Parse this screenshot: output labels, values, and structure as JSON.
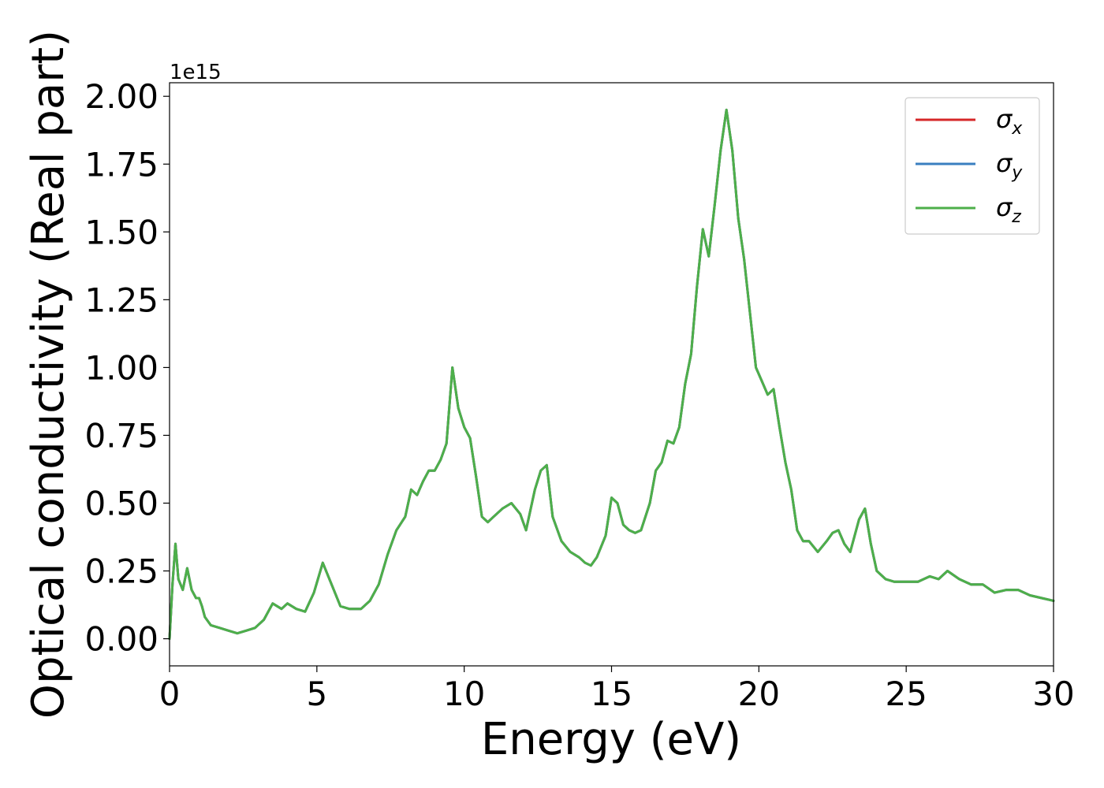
{
  "chart_data": {
    "type": "line",
    "title": "",
    "xlabel": "Energy (eV)",
    "ylabel": "Optical conductivity (Real part)",
    "y_offset_text": "1e15",
    "y_scale": 1000000000000000.0,
    "xlim": [
      0,
      30
    ],
    "ylim": [
      -0.1,
      2.05
    ],
    "xticks": [
      0,
      5,
      10,
      15,
      20,
      25,
      30
    ],
    "xtick_labels": [
      "0",
      "5",
      "10",
      "15",
      "20",
      "25",
      "30"
    ],
    "yticks": [
      0.0,
      0.25,
      0.5,
      0.75,
      1.0,
      1.25,
      1.5,
      1.75,
      2.0
    ],
    "ytick_labels": [
      "0.00",
      "0.25",
      "0.50",
      "0.75",
      "1.00",
      "1.25",
      "1.50",
      "1.75",
      "2.00"
    ],
    "grid": false,
    "legend_position": "top-right",
    "x": [
      0.0,
      0.1,
      0.2,
      0.3,
      0.45,
      0.6,
      0.75,
      0.9,
      1.0,
      1.1,
      1.2,
      1.4,
      1.7,
      2.0,
      2.3,
      2.6,
      2.9,
      3.2,
      3.5,
      3.8,
      4.0,
      4.3,
      4.6,
      4.9,
      5.2,
      5.5,
      5.8,
      6.1,
      6.5,
      6.8,
      7.1,
      7.4,
      7.7,
      8.0,
      8.2,
      8.4,
      8.6,
      8.8,
      9.0,
      9.2,
      9.4,
      9.6,
      9.8,
      10.0,
      10.2,
      10.4,
      10.6,
      10.8,
      11.0,
      11.3,
      11.6,
      11.9,
      12.1,
      12.4,
      12.6,
      12.8,
      13.0,
      13.3,
      13.6,
      13.9,
      14.1,
      14.3,
      14.5,
      14.8,
      15.0,
      15.2,
      15.4,
      15.6,
      15.8,
      16.0,
      16.3,
      16.5,
      16.7,
      16.9,
      17.1,
      17.3,
      17.5,
      17.7,
      17.9,
      18.1,
      18.3,
      18.5,
      18.7,
      18.9,
      19.1,
      19.3,
      19.5,
      19.7,
      19.9,
      20.1,
      20.3,
      20.5,
      20.7,
      20.9,
      21.1,
      21.3,
      21.5,
      21.7,
      22.0,
      22.3,
      22.5,
      22.7,
      22.9,
      23.1,
      23.4,
      23.6,
      23.8,
      24.0,
      24.3,
      24.6,
      25.0,
      25.4,
      25.8,
      26.1,
      26.4,
      26.8,
      27.2,
      27.6,
      28.0,
      28.4,
      28.8,
      29.2,
      29.6,
      30.0
    ],
    "series": [
      {
        "name": "σx",
        "values": [
          0.0,
          0.2,
          0.35,
          0.22,
          0.18,
          0.26,
          0.18,
          0.15,
          0.15,
          0.12,
          0.08,
          0.05,
          0.04,
          0.03,
          0.02,
          0.03,
          0.04,
          0.07,
          0.13,
          0.11,
          0.13,
          0.11,
          0.1,
          0.17,
          0.28,
          0.2,
          0.12,
          0.11,
          0.11,
          0.14,
          0.2,
          0.31,
          0.4,
          0.45,
          0.55,
          0.53,
          0.58,
          0.62,
          0.62,
          0.66,
          0.72,
          1.0,
          0.85,
          0.78,
          0.74,
          0.6,
          0.45,
          0.43,
          0.45,
          0.48,
          0.5,
          0.46,
          0.4,
          0.55,
          0.62,
          0.64,
          0.45,
          0.36,
          0.32,
          0.3,
          0.28,
          0.27,
          0.3,
          0.38,
          0.52,
          0.5,
          0.42,
          0.4,
          0.39,
          0.4,
          0.5,
          0.62,
          0.65,
          0.73,
          0.72,
          0.78,
          0.94,
          1.05,
          1.3,
          1.51,
          1.41,
          1.6,
          1.8,
          1.95,
          1.8,
          1.55,
          1.4,
          1.2,
          1.0,
          0.95,
          0.9,
          0.92,
          0.78,
          0.65,
          0.55,
          0.4,
          0.36,
          0.36,
          0.32,
          0.36,
          0.39,
          0.4,
          0.35,
          0.32,
          0.44,
          0.48,
          0.35,
          0.25,
          0.22,
          0.21,
          0.21,
          0.21,
          0.23,
          0.22,
          0.25,
          0.22,
          0.2,
          0.2,
          0.17,
          0.18,
          0.18,
          0.16,
          0.15,
          0.14
        ]
      },
      {
        "name": "σy",
        "values": [
          0.0,
          0.2,
          0.35,
          0.22,
          0.18,
          0.26,
          0.18,
          0.15,
          0.15,
          0.12,
          0.08,
          0.05,
          0.04,
          0.03,
          0.02,
          0.03,
          0.04,
          0.07,
          0.13,
          0.11,
          0.13,
          0.11,
          0.1,
          0.17,
          0.28,
          0.2,
          0.12,
          0.11,
          0.11,
          0.14,
          0.2,
          0.31,
          0.4,
          0.45,
          0.55,
          0.53,
          0.58,
          0.62,
          0.62,
          0.66,
          0.72,
          1.0,
          0.85,
          0.78,
          0.74,
          0.6,
          0.45,
          0.43,
          0.45,
          0.48,
          0.5,
          0.46,
          0.4,
          0.55,
          0.62,
          0.64,
          0.45,
          0.36,
          0.32,
          0.3,
          0.28,
          0.27,
          0.3,
          0.38,
          0.52,
          0.5,
          0.42,
          0.4,
          0.39,
          0.4,
          0.5,
          0.62,
          0.65,
          0.73,
          0.72,
          0.78,
          0.94,
          1.05,
          1.3,
          1.51,
          1.41,
          1.6,
          1.8,
          1.95,
          1.8,
          1.55,
          1.4,
          1.2,
          1.0,
          0.95,
          0.9,
          0.92,
          0.78,
          0.65,
          0.55,
          0.4,
          0.36,
          0.36,
          0.32,
          0.36,
          0.39,
          0.4,
          0.35,
          0.32,
          0.44,
          0.48,
          0.35,
          0.25,
          0.22,
          0.21,
          0.21,
          0.21,
          0.23,
          0.22,
          0.25,
          0.22,
          0.2,
          0.2,
          0.17,
          0.18,
          0.18,
          0.16,
          0.15,
          0.14
        ]
      },
      {
        "name": "σz",
        "values": [
          0.0,
          0.2,
          0.35,
          0.22,
          0.18,
          0.26,
          0.18,
          0.15,
          0.15,
          0.12,
          0.08,
          0.05,
          0.04,
          0.03,
          0.02,
          0.03,
          0.04,
          0.07,
          0.13,
          0.11,
          0.13,
          0.11,
          0.1,
          0.17,
          0.28,
          0.2,
          0.12,
          0.11,
          0.11,
          0.14,
          0.2,
          0.31,
          0.4,
          0.45,
          0.55,
          0.53,
          0.58,
          0.62,
          0.62,
          0.66,
          0.72,
          1.0,
          0.85,
          0.78,
          0.74,
          0.6,
          0.45,
          0.43,
          0.45,
          0.48,
          0.5,
          0.46,
          0.4,
          0.55,
          0.62,
          0.64,
          0.45,
          0.36,
          0.32,
          0.3,
          0.28,
          0.27,
          0.3,
          0.38,
          0.52,
          0.5,
          0.42,
          0.4,
          0.39,
          0.4,
          0.5,
          0.62,
          0.65,
          0.73,
          0.72,
          0.78,
          0.94,
          1.05,
          1.3,
          1.51,
          1.41,
          1.6,
          1.8,
          1.95,
          1.8,
          1.55,
          1.4,
          1.2,
          1.0,
          0.95,
          0.9,
          0.92,
          0.78,
          0.65,
          0.55,
          0.4,
          0.36,
          0.36,
          0.32,
          0.36,
          0.39,
          0.4,
          0.35,
          0.32,
          0.44,
          0.48,
          0.35,
          0.25,
          0.22,
          0.21,
          0.21,
          0.21,
          0.23,
          0.22,
          0.25,
          0.22,
          0.2,
          0.2,
          0.17,
          0.18,
          0.18,
          0.16,
          0.15,
          0.14
        ]
      }
    ],
    "legend": [
      {
        "symbol": "σ",
        "sub": "x",
        "color": "#d62728"
      },
      {
        "symbol": "σ",
        "sub": "y",
        "color": "#3a7fc0"
      },
      {
        "symbol": "σ",
        "sub": "z",
        "color": "#4daf4a"
      }
    ]
  }
}
